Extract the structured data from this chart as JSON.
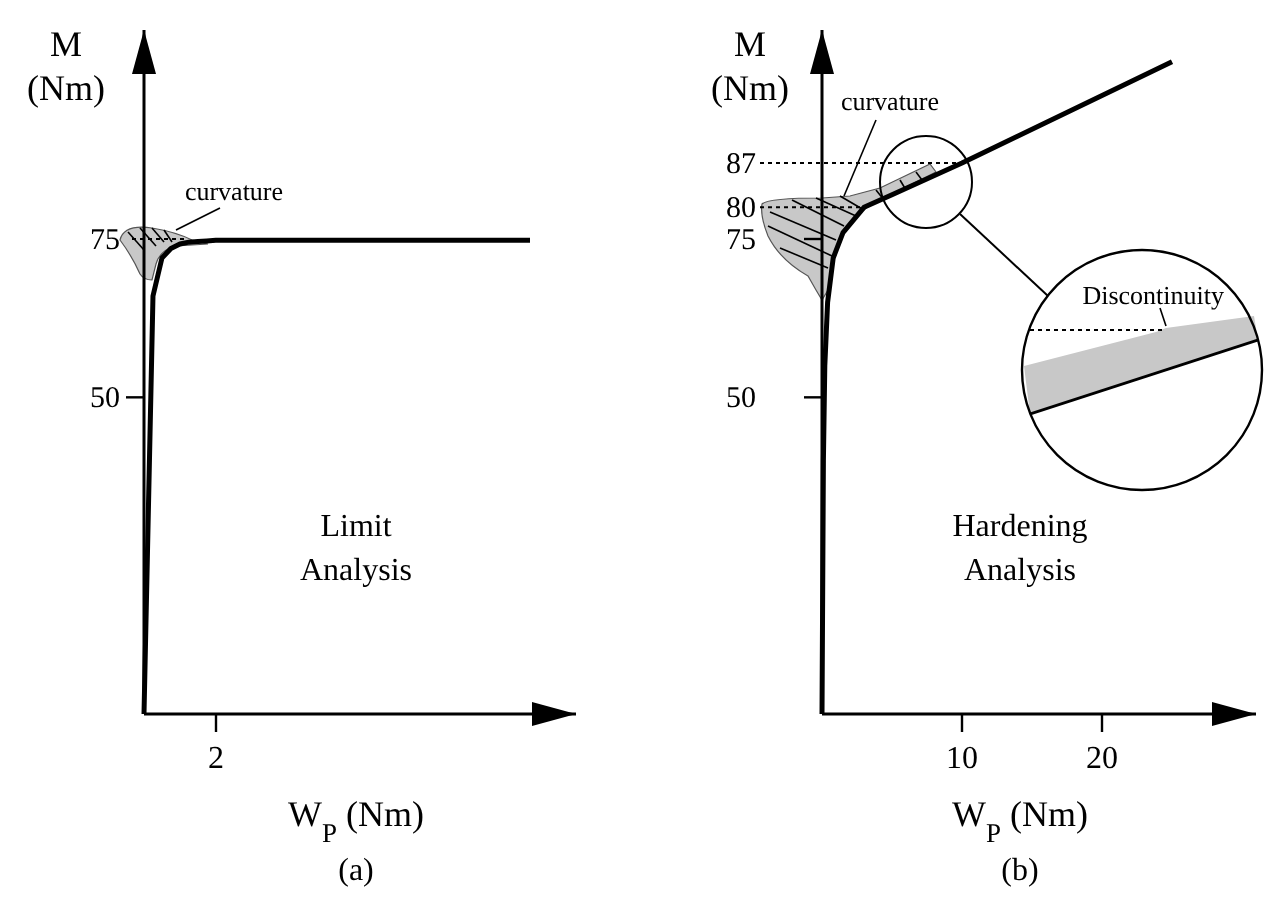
{
  "chart_data": [
    {
      "type": "line",
      "xlabel": "W$_{P}$ (Nm)",
      "ylabel": "M (Nm)",
      "categories": [
        null,
        null,
        null,
        null,
        null,
        null,
        null,
        null,
        null,
        null,
        null,
        null,
        null,
        null,
        null,
        null,
        null,
        null,
        null,
        null,
        null,
        null,
        null,
        null,
        null,
        null,
        null,
        null,
        null,
        null,
        null,
        null,
        null,
        null,
        null,
        null,
        null,
        null,
        null,
        null,
        null,
        null,
        null,
        null
      ],
      "series": [
        {
          "color": "#000000",
          "values": [
            0,
            66,
            72,
            73.5,
            74.2,
            74.5,
            74.6,
            74.7,
            74.8,
            74.8,
            74.8,
            74.8,
            74.8,
            74.8,
            74.8,
            74.8,
            74.8,
            74.8,
            74.8,
            74.8,
            74.8,
            74.8,
            74.8,
            74.8,
            74.8,
            74.8,
            74.8,
            74.8,
            74.8,
            74.8,
            74.8,
            74.8,
            74.8,
            74.8,
            74.8,
            74.8,
            74.8,
            74.8,
            74.8,
            74.8,
            74.8,
            74.8,
            74.8,
            74.8
          ]
        }
      ],
      "ylim": [
        0,
        108
      ],
      "yticks": [
        50,
        75
      ],
      "tick_labels": "y",
      "ref_lines": [
        {
          "axis": "y",
          "value": 75,
          "line_style": "dotted"
        }
      ],
      "annotations": [
        "curvature",
        "Limit Analysis",
        "(a)",
        "2"
      ],
      "marker": "none",
      "line_style": "solid"
    },
    {
      "type": "line",
      "xlabel": "W$_{P}$ (Nm)",
      "ylabel": "M (Nm)",
      "x": [
        0,
        0.1,
        0.2,
        0.4,
        0.8,
        1.5,
        3,
        5,
        10,
        25
      ],
      "series": [
        {
          "color": "#000000",
          "values": [
            0,
            40,
            55,
            65,
            72,
            76,
            80,
            82,
            87,
            103
          ]
        }
      ],
      "xlim": [
        0,
        31
      ],
      "ylim": [
        0,
        108
      ],
      "xticks": [
        10,
        20
      ],
      "yticks": [
        50,
        75,
        80,
        87
      ],
      "ref_lines": [
        {
          "axis": "y",
          "value": 80,
          "line_style": "dotted"
        },
        {
          "axis": "y",
          "value": 87,
          "line_style": "dotted"
        }
      ],
      "annotations": [
        "curvature",
        "Hardening Analysis",
        "(b)",
        "Discontinuity"
      ],
      "marker": "none",
      "line_style": "solid"
    }
  ]
}
